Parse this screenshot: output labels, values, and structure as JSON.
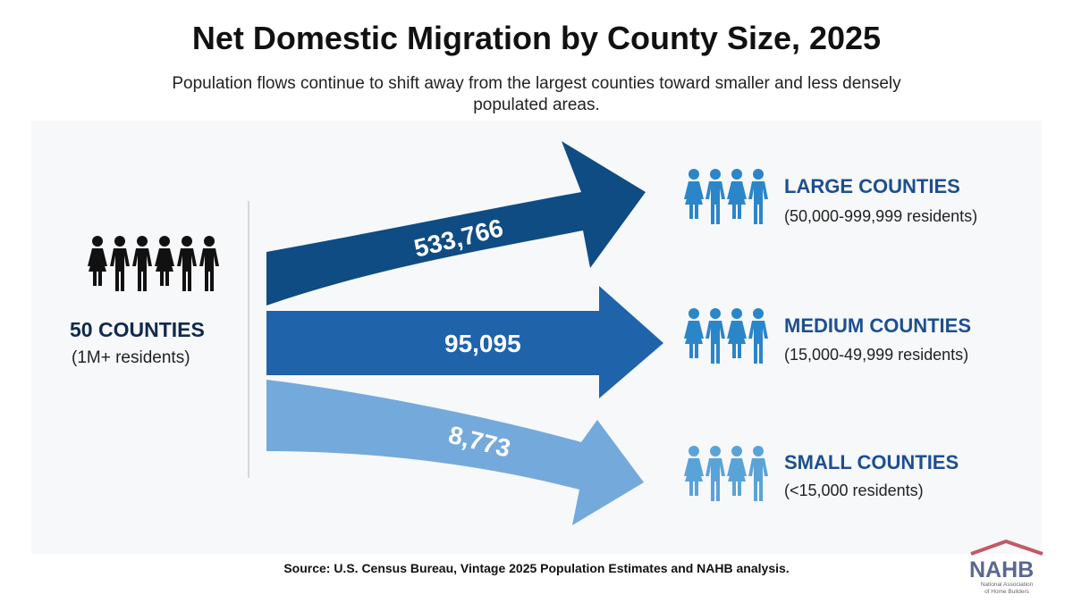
{
  "title": "Net Domestic Migration by County Size, 2025",
  "subtitle": "Population flows continue to shift away from the largest counties toward smaller and less densely populated areas.",
  "source": {
    "group": {
      "title": "50 COUNTIES",
      "subtitle": "(1M+ residents)",
      "icon": "people-group-icon"
    }
  },
  "flows": [
    {
      "value": "533,766",
      "color": "#0f4c84"
    },
    {
      "value": "95,095",
      "color": "#1f63ab"
    },
    {
      "value": "8,773",
      "color": "#74a9dc"
    }
  ],
  "destinations": [
    {
      "title": "LARGE COUNTIES",
      "subtitle": "(50,000-999,999 residents)",
      "icon": "people-group-icon",
      "color": "#2a86c8"
    },
    {
      "title": "MEDIUM COUNTIES",
      "subtitle": "(15,000-49,999 residents)",
      "icon": "people-group-icon",
      "color": "#2a86c8"
    },
    {
      "title": "SMALL COUNTIES",
      "subtitle": "(<15,000 residents)",
      "icon": "people-group-icon",
      "color": "#5aa3d8"
    }
  ],
  "footer": {
    "source": "Source: U.S. Census Bureau, Vintage 2025 Population Estimates and NAHB analysis."
  },
  "logo": {
    "text": "NAHB",
    "tagline": "National Association of Home Builders"
  }
}
